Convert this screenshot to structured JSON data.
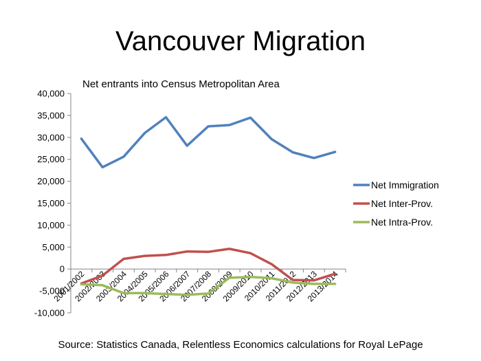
{
  "slide": {
    "title": "Vancouver Migration",
    "source": "Source: Statistics Canada, Relentless Economics calculations for Royal LePage"
  },
  "chart_data": {
    "type": "line",
    "title": "",
    "subtitle": "Net entrants into Census Metropolitan Area",
    "xlabel": "",
    "ylabel": "",
    "categories": [
      "2001/2002",
      "2002/2003",
      "2003/2004",
      "2004/2005",
      "2005/2006",
      "2006/2007",
      "2007/2008",
      "2008/2009",
      "2009/2010",
      "2010/2011",
      "2011/2012",
      "2012/2013",
      "2013/2014"
    ],
    "ylim": [
      -10000,
      40000
    ],
    "ytick_labels": [
      "40,000",
      "35,000",
      "30,000",
      "25,000",
      "20,000",
      "15,000",
      "10,000",
      "5,000",
      "0",
      "-5,000",
      "-10,000"
    ],
    "yticks": [
      40000,
      35000,
      30000,
      25000,
      20000,
      15000,
      10000,
      5000,
      0,
      -5000,
      -10000
    ],
    "grid": false,
    "legend_position": "right",
    "series": [
      {
        "name": "Net Immigration",
        "color": "#4F81BD",
        "values": [
          29700,
          23200,
          25600,
          31000,
          34600,
          28100,
          32500,
          32800,
          34500,
          29600,
          26600,
          25300,
          26700
        ]
      },
      {
        "name": "Net Inter-Prov.",
        "color": "#C0504D",
        "values": [
          -3300,
          -1500,
          2300,
          3000,
          3200,
          4000,
          3900,
          4600,
          3600,
          1100,
          -2500,
          -2600,
          -1100
        ]
      },
      {
        "name": "Net Intra-Prov.",
        "color": "#9BBB59",
        "values": [
          -3500,
          -3700,
          -5500,
          -5500,
          -5700,
          -5900,
          -5600,
          -2000,
          -1800,
          -2100,
          -3100,
          -3400,
          -3400
        ]
      }
    ]
  }
}
